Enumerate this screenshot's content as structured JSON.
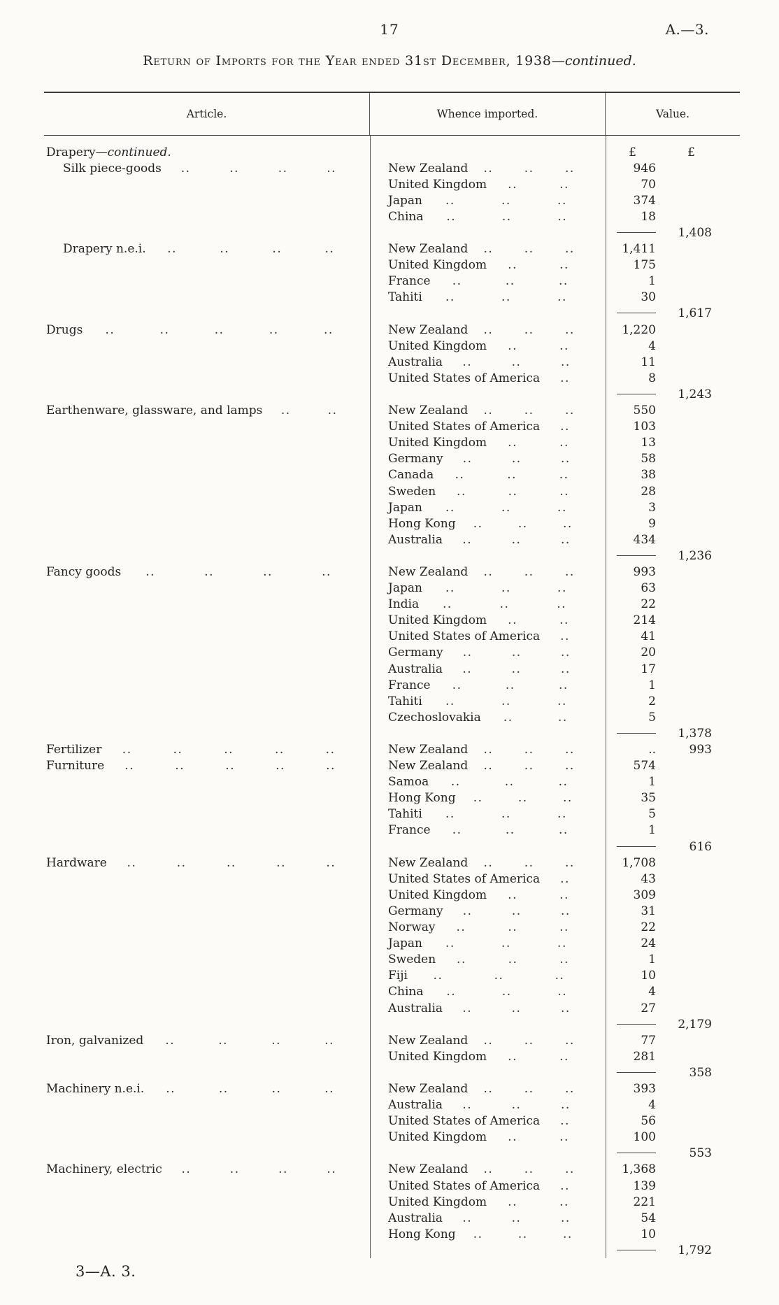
{
  "page": {
    "number": "17",
    "ref": "A.—3.",
    "footer": "3—A. 3."
  },
  "title": {
    "main": "Return of Imports for the Year ended 31st December, 1938",
    "suffix": "—continued."
  },
  "table": {
    "col_headers": {
      "article": "Article.",
      "whence": "Whence imported.",
      "value": "Value."
    },
    "currency": "£",
    "group_heading": {
      "main": "Drapery",
      "suffix": "—continued."
    },
    "sections": [
      {
        "article": "Silk piece-goods",
        "indent": true,
        "entries": [
          {
            "country": "New Zealand",
            "value": "946"
          },
          {
            "country": "United Kingdom",
            "value": "70"
          },
          {
            "country": "Japan",
            "value": "374"
          },
          {
            "country": "China",
            "value": "18"
          }
        ],
        "total": "1,408"
      },
      {
        "article": "Drapery n.e.i.",
        "indent": true,
        "entries": [
          {
            "country": "New Zealand",
            "value": "1,411"
          },
          {
            "country": "United Kingdom",
            "value": "175"
          },
          {
            "country": "France",
            "value": "1"
          },
          {
            "country": "Tahiti",
            "value": "30"
          }
        ],
        "total": "1,617"
      },
      {
        "article": "Drugs",
        "indent": false,
        "entries": [
          {
            "country": "New Zealand",
            "value": "1,220"
          },
          {
            "country": "United Kingdom",
            "value": "4"
          },
          {
            "country": "Australia",
            "value": "11"
          },
          {
            "country": "United States of America",
            "value": "8"
          }
        ],
        "total": "1,243"
      },
      {
        "article": "Earthenware, glassware, and lamps",
        "indent": false,
        "entries": [
          {
            "country": "New Zealand",
            "value": "550"
          },
          {
            "country": "United States of America",
            "value": "103"
          },
          {
            "country": "United Kingdom",
            "value": "13"
          },
          {
            "country": "Germany",
            "value": "58"
          },
          {
            "country": "Canada",
            "value": "38"
          },
          {
            "country": "Sweden",
            "value": "28"
          },
          {
            "country": "Japan",
            "value": "3"
          },
          {
            "country": "Hong Kong",
            "value": "9"
          },
          {
            "country": "Australia",
            "value": "434"
          }
        ],
        "total": "1,236"
      },
      {
        "article": "Fancy goods",
        "indent": false,
        "entries": [
          {
            "country": "New Zealand",
            "value": "993"
          },
          {
            "country": "Japan",
            "value": "63"
          },
          {
            "country": "India",
            "value": "22"
          },
          {
            "country": "United Kingdom",
            "value": "214"
          },
          {
            "country": "United States of America",
            "value": "41"
          },
          {
            "country": "Germany",
            "value": "20"
          },
          {
            "country": "Australia",
            "value": "17"
          },
          {
            "country": "France",
            "value": "1"
          },
          {
            "country": "Tahiti",
            "value": "2"
          },
          {
            "country": "Czechoslovakia",
            "value": "5"
          }
        ],
        "total": "1,378"
      },
      {
        "article": "Fertilizer",
        "indent": false,
        "inline_total": true,
        "entries": [
          {
            "country": "New Zealand",
            "value": ".."
          }
        ],
        "total": "993"
      },
      {
        "article": "Furniture",
        "indent": false,
        "entries": [
          {
            "country": "New Zealand",
            "value": "574"
          },
          {
            "country": "Samoa",
            "value": "1"
          },
          {
            "country": "Hong Kong",
            "value": "35"
          },
          {
            "country": "Tahiti",
            "value": "5"
          },
          {
            "country": "France",
            "value": "1"
          }
        ],
        "total": "616"
      },
      {
        "article": "Hardware",
        "indent": false,
        "entries": [
          {
            "country": "New Zealand",
            "value": "1,708"
          },
          {
            "country": "United States of America",
            "value": "43"
          },
          {
            "country": "United Kingdom",
            "value": "309"
          },
          {
            "country": "Germany",
            "value": "31"
          },
          {
            "country": "Norway",
            "value": "22"
          },
          {
            "country": "Japan",
            "value": "24"
          },
          {
            "country": "Sweden",
            "value": "1"
          },
          {
            "country": "Fiji",
            "value": "10"
          },
          {
            "country": "China",
            "value": "4"
          },
          {
            "country": "Australia",
            "value": "27"
          }
        ],
        "total": "2,179"
      },
      {
        "article": "Iron, galvanized",
        "indent": false,
        "entries": [
          {
            "country": "New Zealand",
            "value": "77"
          },
          {
            "country": "United Kingdom",
            "value": "281"
          }
        ],
        "total": "358"
      },
      {
        "article": "Machinery n.e.i.",
        "indent": false,
        "entries": [
          {
            "country": "New Zealand",
            "value": "393"
          },
          {
            "country": "Australia",
            "value": "4"
          },
          {
            "country": "United States of America",
            "value": "56"
          },
          {
            "country": "United Kingdom",
            "value": "100"
          }
        ],
        "total": "553"
      },
      {
        "article": "Machinery, electric",
        "indent": false,
        "entries": [
          {
            "country": "New Zealand",
            "value": "1,368"
          },
          {
            "country": "United States of America",
            "value": "139"
          },
          {
            "country": "United Kingdom",
            "value": "221"
          },
          {
            "country": "Australia",
            "value": "54"
          },
          {
            "country": "Hong Kong",
            "value": "10"
          }
        ],
        "total": "1,792"
      }
    ]
  }
}
